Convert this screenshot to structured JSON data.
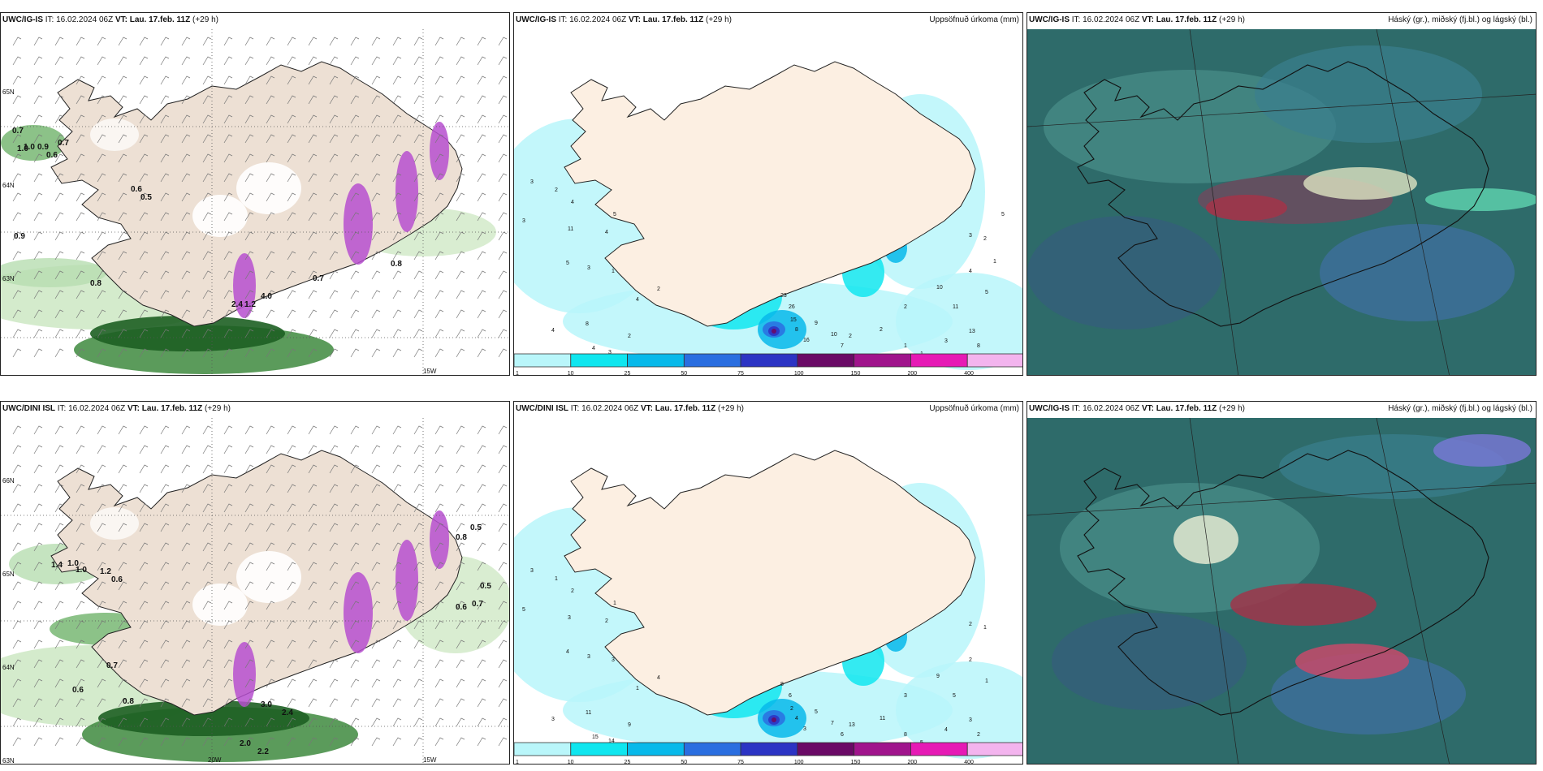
{
  "panels": [
    {
      "model": "UWC/IG-IS",
      "it_label": "IT:",
      "it_value": "16.02.2024 06Z",
      "vt_label": "VT:",
      "vt_value": "Lau. 17.feb. 11Z",
      "lead": "(+29 h)",
      "right_title": "",
      "kind": "snow",
      "values": [
        "0.7",
        "1.0",
        "0.9",
        "0.7",
        "0.6",
        "0.6",
        "0.5",
        "0.9",
        "0.8",
        "0.7",
        "0.8",
        "1.0",
        "2.4",
        "4.0",
        "1.2"
      ],
      "lon_labels": [
        "15W"
      ],
      "lat_labels": [
        "65N",
        "64N",
        "63N"
      ]
    },
    {
      "model": "UWC/IG-IS",
      "it_label": "IT:",
      "it_value": "16.02.2024 06Z",
      "vt_label": "VT:",
      "vt_value": "Lau. 17.feb. 11Z",
      "lead": "(+29 h)",
      "right_title": "Uppsöfnuð úrkoma (mm)",
      "kind": "precip",
      "values": [
        "3",
        "2",
        "4",
        "3",
        "11",
        "5",
        "4",
        "5",
        "3",
        "1",
        "2",
        "4",
        "8",
        "4",
        "4",
        "3",
        "2",
        "23",
        "26",
        "15",
        "8",
        "16",
        "9",
        "10",
        "7",
        "6",
        "2",
        "2",
        "1",
        "1",
        "3",
        "2",
        "10",
        "11",
        "13",
        "8",
        "4",
        "5",
        "3",
        "2",
        "1",
        "5"
      ]
    },
    {
      "model": "UWC/IG-IS",
      "it_label": "IT:",
      "it_value": "16.02.2024 06Z",
      "vt_label": "VT:",
      "vt_value": "Lau. 17.feb. 11Z",
      "lead": "(+29 h)",
      "right_title": "Háský (gr.), miðský (fj.bl.) og lágský (bl.)",
      "kind": "cloud"
    },
    {
      "model": "UWC/DINI ISL",
      "it_label": "IT:",
      "it_value": "16.02.2024 06Z",
      "vt_label": "VT:",
      "vt_value": "Lau. 17.feb. 11Z",
      "lead": "(+29 h)",
      "right_title": "",
      "kind": "snow",
      "values": [
        "1.4",
        "1.0",
        "1.0",
        "1.2",
        "0.6",
        "0.6",
        "0.7",
        "0.5",
        "0.8",
        "0.5",
        "0.7",
        "0.6",
        "0.8",
        "3.0",
        "2.4",
        "2.0",
        "2.2"
      ],
      "lon_labels": [
        "20W",
        "15W"
      ],
      "lat_labels": [
        "66N",
        "65N",
        "64N",
        "63N"
      ]
    },
    {
      "model": "UWC/DINI ISL",
      "it_label": "IT:",
      "it_value": "16.02.2024 06Z",
      "vt_label": "VT:",
      "vt_value": "Lau. 17.feb. 11Z",
      "lead": "(+29 h)",
      "right_title": "Uppsöfnuð úrkoma (mm)",
      "kind": "precip",
      "values": [
        "3",
        "1",
        "2",
        "5",
        "3",
        "1",
        "2",
        "4",
        "3",
        "3",
        "4",
        "3",
        "11",
        "1",
        "15",
        "14",
        "9",
        "8",
        "6",
        "2",
        "4",
        "3",
        "5",
        "7",
        "6",
        "2",
        "13",
        "11",
        "8",
        "5",
        "4",
        "3",
        "9",
        "5",
        "3",
        "2",
        "2",
        "1",
        "2",
        "1"
      ]
    },
    {
      "model": "UWC/IG-IS",
      "it_label": "IT:",
      "it_value": "16.02.2024 06Z",
      "vt_label": "VT:",
      "vt_value": "Lau. 17.feb. 11Z",
      "lead": "(+29 h)",
      "right_title": "Háský (gr.), miðský (fj.bl.) og lágský (bl.)",
      "kind": "cloud"
    }
  ],
  "colorbar": {
    "labels": [
      "1",
      "10",
      "25",
      "50",
      "75",
      "100",
      "150",
      "200",
      "400"
    ],
    "colors": [
      "#b9f6fa",
      "#10e6ef",
      "#07b9ea",
      "#2a6ee0",
      "#2c34c4",
      "#6a0a66",
      "#a0148c",
      "#e61ab5",
      "#f3b4ee"
    ]
  }
}
